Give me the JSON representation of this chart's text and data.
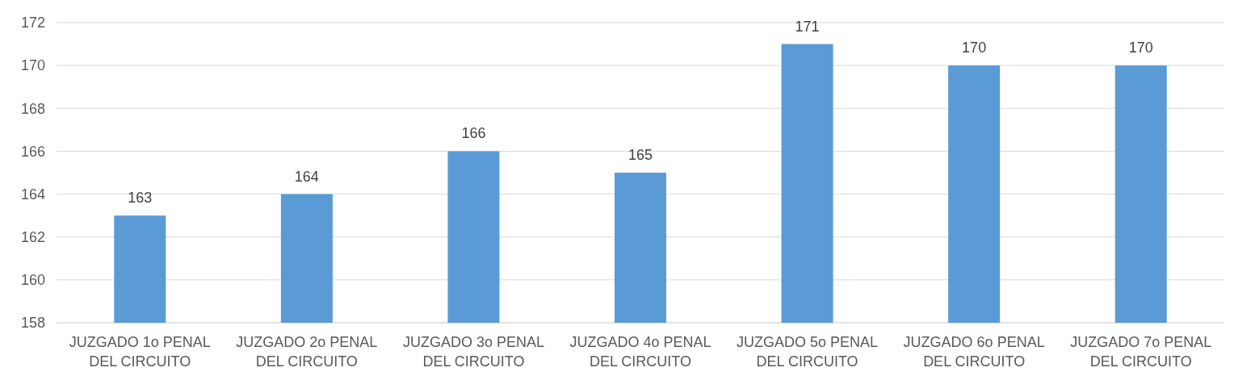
{
  "chart_data": {
    "type": "bar",
    "categories": [
      "JUZGADO 1o PENAL DEL CIRCUITO",
      "JUZGADO 2o PENAL DEL CIRCUITO",
      "JUZGADO 3o PENAL DEL CIRCUITO",
      "JUZGADO 4o PENAL DEL CIRCUITO",
      "JUZGADO 5o PENAL DEL CIRCUITO",
      "JUZGADO 6o PENAL DEL CIRCUITO",
      "JUZGADO 7o PENAL DEL CIRCUITO"
    ],
    "values": [
      163,
      164,
      166,
      165,
      171,
      170,
      170
    ],
    "color": "#5b9bd5",
    "ylim": [
      158,
      172
    ],
    "yticks": [
      158,
      160,
      162,
      164,
      166,
      168,
      170,
      172
    ],
    "grid": "y",
    "data_labels": true
  }
}
